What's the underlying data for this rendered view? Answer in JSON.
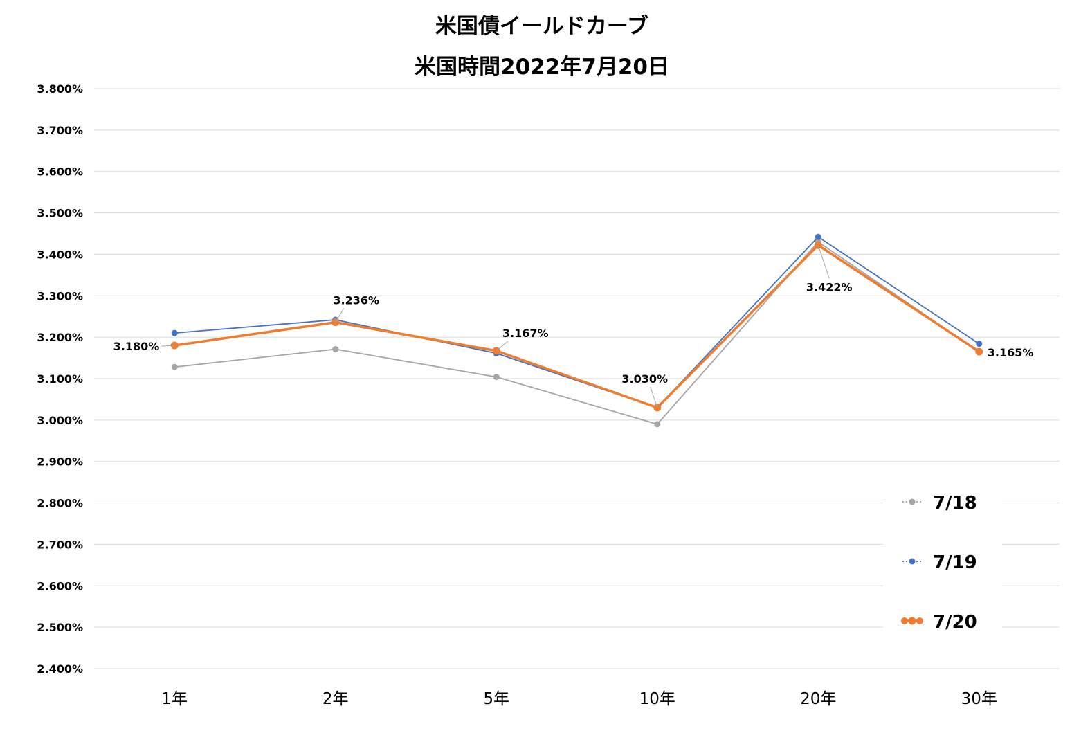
{
  "chart_data": {
    "type": "line",
    "title": "米国債イールドカーブ",
    "subtitle": "米国時間2022年7月20日",
    "categories": [
      "1年",
      "2年",
      "5年",
      "10年",
      "20年",
      "30年"
    ],
    "ylim": [
      2.4,
      3.8
    ],
    "yticks": [
      "3.800%",
      "3.700%",
      "3.600%",
      "3.500%",
      "3.400%",
      "3.300%",
      "3.200%",
      "3.100%",
      "3.000%",
      "2.900%",
      "2.800%",
      "2.700%",
      "2.600%",
      "2.500%",
      "2.400%"
    ],
    "yunit": "%",
    "grid": true,
    "legend_position": "bottom-right",
    "series": [
      {
        "name": "7/18",
        "color": "#A5A5A5",
        "values": [
          3.128,
          3.171,
          3.104,
          2.99,
          3.43,
          3.165
        ]
      },
      {
        "name": "7/19",
        "color": "#4472C4",
        "values": [
          3.21,
          3.242,
          3.161,
          3.03,
          3.442,
          3.184
        ]
      },
      {
        "name": "7/20",
        "color": "#ED7D31",
        "values": [
          3.18,
          3.236,
          3.167,
          3.03,
          3.422,
          3.165
        ]
      }
    ],
    "data_labels": [
      "3.180%",
      "3.236%",
      "3.167%",
      "3.030%",
      "3.422%",
      "3.165%"
    ]
  }
}
